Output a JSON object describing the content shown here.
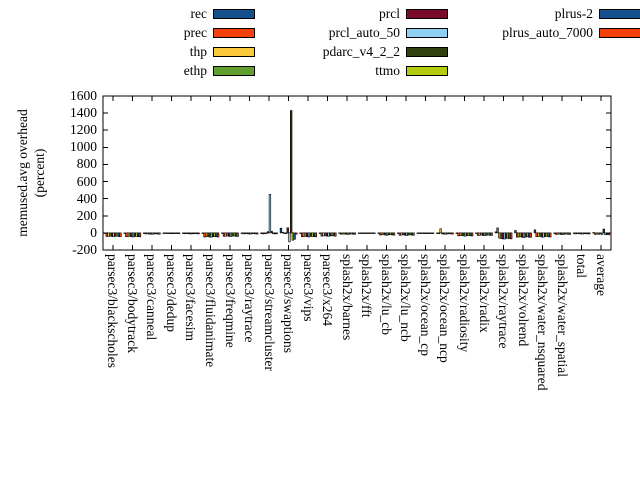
{
  "chart_data": {
    "type": "bar",
    "title": "",
    "ylabel_line1": "memused.avg overhead",
    "ylabel_line2": "(percent)",
    "ylim": [
      -200,
      1600
    ],
    "ytick_step": 200,
    "yticks": [
      1600,
      1400,
      1200,
      1000,
      800,
      600,
      400,
      200,
      0,
      -200
    ],
    "grid": false,
    "legend_position": "top",
    "legend_columns": [
      [
        "rec",
        "prec",
        "thp",
        "ethp"
      ],
      [
        "prcl",
        "prcl_auto_50",
        "pdarc_v4_2_2",
        "ttmo"
      ],
      [
        "plrus-2",
        "plrus_auto_7000"
      ]
    ],
    "categories": [
      "parsec3/blackscholes",
      "parsec3/bodytrack",
      "parsec3/canneal",
      "parsec3/dedup",
      "parsec3/facesim",
      "parsec3/fluidanimate",
      "parsec3/freqmine",
      "parsec3/raytrace",
      "parsec3/streamcluster",
      "parsec3/swaptions",
      "parsec3/vips",
      "parsec3/x264",
      "splash2x/barnes",
      "splash2x/fft",
      "splash2x/lu_cb",
      "splash2x/lu_ncb",
      "splash2x/ocean_cp",
      "splash2x/ocean_ncp",
      "splash2x/radiosity",
      "splash2x/radix",
      "splash2x/raytrace",
      "splash2x/volrend",
      "splash2x/water_nsquared",
      "splash2x/water_spatial",
      "total",
      "average"
    ],
    "series": [
      {
        "name": "rec",
        "color": "#164f8d",
        "values": [
          -3,
          -4,
          -3,
          -2,
          -3,
          -4,
          -3,
          -3,
          -8,
          55,
          -3,
          -4,
          -3,
          -2,
          -3,
          -3,
          -2,
          -4,
          -3,
          -3,
          12,
          28,
          35,
          -3,
          -2,
          4
        ]
      },
      {
        "name": "prec",
        "color": "#f4410c",
        "values": [
          -42,
          -45,
          -12,
          -6,
          -10,
          -48,
          -40,
          -12,
          -12,
          8,
          -45,
          -38,
          -16,
          -5,
          -25,
          -28,
          -8,
          -10,
          -35,
          -30,
          58,
          -50,
          -45,
          -18,
          -12,
          -18
        ]
      },
      {
        "name": "thp",
        "color": "#fcc93c",
        "values": [
          -40,
          -42,
          -10,
          -5,
          -8,
          -45,
          -38,
          -10,
          -10,
          -5,
          -42,
          -35,
          -14,
          -4,
          -22,
          -25,
          -6,
          48,
          -32,
          -28,
          -60,
          -48,
          -42,
          -15,
          -10,
          -15
        ]
      },
      {
        "name": "ethp",
        "color": "#61a02e",
        "values": [
          -38,
          -40,
          -15,
          -8,
          -10,
          -42,
          -36,
          -10,
          -8,
          -10,
          -40,
          -32,
          -14,
          -5,
          -20,
          -22,
          -6,
          -12,
          -30,
          -25,
          -65,
          -45,
          -40,
          -14,
          -10,
          -16
        ]
      },
      {
        "name": "prcl",
        "color": "#7a0a2a",
        "values": [
          -42,
          -45,
          -14,
          -8,
          -12,
          -48,
          -40,
          -12,
          15,
          60,
          -45,
          -38,
          -16,
          -6,
          -25,
          -28,
          -8,
          -14,
          -35,
          -30,
          -70,
          -52,
          -48,
          -18,
          -12,
          -12
        ]
      },
      {
        "name": "prcl_auto_50",
        "color": "#8dcef2",
        "values": [
          -45,
          -48,
          -16,
          -10,
          -12,
          -50,
          -42,
          -14,
          450,
          -105,
          -48,
          -40,
          -18,
          -6,
          -28,
          -30,
          -10,
          -15,
          -38,
          -32,
          -72,
          -55,
          -50,
          -20,
          -14,
          -20
        ]
      },
      {
        "name": "pdarc_v4_2_2",
        "color": "#334010",
        "values": [
          -40,
          -42,
          -12,
          -8,
          -10,
          -45,
          -38,
          -10,
          20,
          1430,
          -42,
          -35,
          -14,
          -5,
          -22,
          -25,
          -8,
          -12,
          -32,
          -28,
          -65,
          -48,
          -42,
          -15,
          -10,
          45
        ]
      },
      {
        "name": "ttmo",
        "color": "#b4cb12",
        "values": [
          -38,
          -40,
          -10,
          -6,
          -8,
          -42,
          -36,
          -10,
          -10,
          -85,
          -40,
          -32,
          -13,
          -4,
          -20,
          -22,
          -6,
          -10,
          -30,
          -25,
          -60,
          -45,
          -40,
          -14,
          -10,
          -22
        ]
      },
      {
        "name": "plrus-2",
        "color": "#164f8d",
        "values": [
          -42,
          -45,
          -14,
          -8,
          -10,
          -46,
          -40,
          -12,
          -12,
          -75,
          -44,
          -36,
          -15,
          -5,
          -24,
          -26,
          -8,
          -12,
          -34,
          -28,
          -68,
          -50,
          -46,
          -16,
          -12,
          -20
        ]
      },
      {
        "name": "plrus_auto_7000",
        "color": "#f4410c",
        "values": [
          -45,
          -46,
          -15,
          -9,
          -12,
          -48,
          -42,
          -14,
          -10,
          -15,
          -46,
          -38,
          -16,
          -6,
          -26,
          -28,
          -8,
          -14,
          -36,
          -30,
          -70,
          -52,
          -48,
          -18,
          -12,
          -22
        ]
      }
    ]
  }
}
